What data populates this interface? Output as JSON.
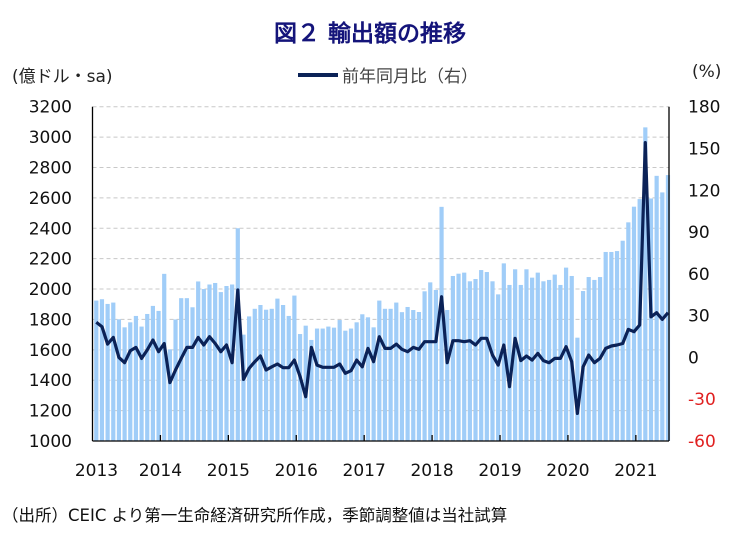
{
  "title": "図２ 輸出額の推移",
  "left_unit": "(億ドル・sa)",
  "right_unit": "(%)",
  "legend_label": "前年同月比（右）",
  "source": "（出所）CEIC より第一生命経済研究所作成，季節調整値は当社試算",
  "colors": {
    "bar": "#a0cdf8",
    "line": "#0b2257",
    "title": "#14147a",
    "negative_tick": "#e02020"
  },
  "chart_data": {
    "type": "bar+line",
    "title": "図２ 輸出額の推移",
    "x_start": "2013-01",
    "x_end": "2021-06",
    "frequency": "monthly",
    "year_labels": [
      "2013",
      "2014",
      "2015",
      "2016",
      "2017",
      "2018",
      "2019",
      "2020",
      "2021"
    ],
    "left_axis": {
      "label": "(億ドル・sa)",
      "ylim": [
        1000,
        3200
      ],
      "ticks": [
        1000,
        1200,
        1400,
        1600,
        1800,
        2000,
        2200,
        2400,
        2600,
        2800,
        3000,
        3200
      ]
    },
    "right_axis": {
      "label": "(%)",
      "ylim": [
        -60,
        180
      ],
      "ticks": [
        -60,
        -30,
        0,
        30,
        60,
        90,
        120,
        150,
        180
      ]
    },
    "grid": true,
    "legend_placement": "top-center",
    "series": [
      {
        "name": "輸出額",
        "type": "bar",
        "axis": "left",
        "values": [
          1924,
          1933,
          1902,
          1911,
          1801,
          1748,
          1781,
          1823,
          1753,
          1836,
          1889,
          1856,
          2100,
          1603,
          1800,
          1940,
          1940,
          1880,
          2050,
          2000,
          2030,
          2040,
          1980,
          2020,
          2030,
          2400,
          1700,
          1820,
          1870,
          1895,
          1864,
          1870,
          1937,
          1895,
          1823,
          1957,
          1704,
          1759,
          1665,
          1740,
          1740,
          1753,
          1746,
          1796,
          1726,
          1740,
          1781,
          1834,
          1814,
          1748,
          1924,
          1870,
          1870,
          1911,
          1848,
          1882,
          1862,
          1849,
          1985,
          2044,
          1994,
          2541,
          1862,
          2086,
          2101,
          2108,
          2051,
          2066,
          2125,
          2112,
          2051,
          1965,
          2169,
          2027,
          2130,
          2027,
          2130,
          2075,
          2108,
          2051,
          2060,
          2095,
          2027,
          2141,
          2086,
          1680,
          1987,
          2079,
          2060,
          2079,
          2244,
          2244,
          2250,
          2318,
          2439,
          2542,
          2592,
          3064,
          2596,
          2745,
          2636,
          2750
        ]
      },
      {
        "name": "前年同月比（右）",
        "type": "line",
        "axis": "right",
        "values": [
          25.2,
          22,
          9.6,
          14.4,
          0,
          -3.8,
          4.8,
          7.2,
          -0.7,
          5.3,
          12.5,
          4.1,
          10,
          -18.1,
          -9,
          -0.7,
          7.2,
          7.2,
          14.4,
          8.9,
          14.9,
          10,
          4.1,
          8.9,
          -3.8,
          48.4,
          -15.8,
          -7.9,
          -3.1,
          1,
          -9,
          -6.7,
          -4.7,
          -7.4,
          -7.4,
          -1.9,
          -13.8,
          -28.2,
          7.2,
          -5.5,
          -7.1,
          -7.1,
          -7.1,
          -4.7,
          -11.4,
          -9.5,
          -1.9,
          -6.7,
          6.5,
          -3.1,
          14.9,
          6.5,
          6.5,
          9.6,
          5.8,
          4.1,
          7.2,
          5.8,
          11.3,
          11.3,
          11.3,
          43.6,
          -3.8,
          12,
          12,
          11.3,
          12,
          8.9,
          13.7,
          13.7,
          1.7,
          -5.5,
          8.9,
          -21,
          13.7,
          -2.3,
          1,
          -1.9,
          2.9,
          -2.3,
          -3.8,
          -0.7,
          -0.7,
          7.7,
          -3.1,
          -40.2,
          -6.7,
          1.7,
          -3.8,
          -0.7,
          6.5,
          8.2,
          8.9,
          10,
          20.1,
          18.5,
          23.3,
          154.2,
          29.2,
          32.1,
          27.3,
          32.1
        ]
      }
    ]
  }
}
